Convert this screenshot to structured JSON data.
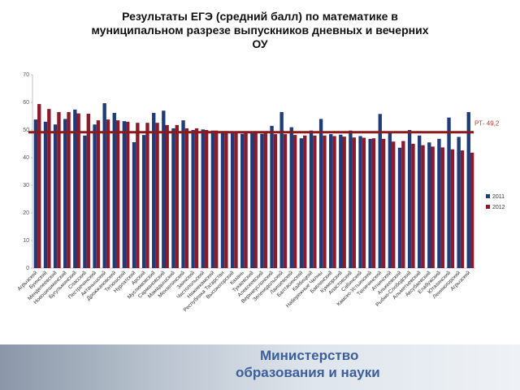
{
  "chart_data": {
    "type": "bar",
    "title": "Результаты ЕГЭ (средний балл) по математике в муниципальном разрезе выпускников дневных и вечерних ОУ",
    "categories": [
      "Агрызский",
      "Буинский",
      "Менделеевский",
      "Новошешминский",
      "Бугульминский",
      "Спасский",
      "Пестречинский",
      "Актанышский",
      "Дрожжановский",
      "Тетюшский",
      "Нурлатский",
      "Арский",
      "Муслюмовский",
      "Сармановский",
      "Мамадышский",
      "Мензелинский",
      "Заинский",
      "Чистопольский",
      "Нижнекамский",
      "Республика Татарстан",
      "Высокогорский",
      "Казань",
      "Тукаевский",
      "Алексеевский",
      "Верхнеуслонский",
      "Зеленодольский",
      "Лаишевский",
      "Балтасинский",
      "Кайбицкий",
      "Набережные Челны",
      "Бавлинский",
      "Кукморский",
      "Апастовский",
      "Сабинский",
      "Камско-Устьинский",
      "Тюлячинский",
      "Атнинский",
      "Алькеевский",
      "Рыбно-Слободский",
      "Альметьевский",
      "Аксубаевский",
      "Елабужский",
      "Ютазинский",
      "Лениногорский",
      "Агрызский"
    ],
    "series": [
      {
        "name": "2011",
        "color": "#1f3b7a",
        "values": [
          53.8,
          53,
          52,
          54,
          57.4,
          48,
          52,
          59.7,
          56.2,
          53.2,
          45.6,
          48.2,
          56.2,
          57,
          50.6,
          53.5,
          50,
          50.2,
          49.8,
          49.6,
          49.4,
          48.6,
          49,
          48.6,
          51.5,
          56.5,
          51,
          47,
          49.8,
          54,
          48.5,
          48.3,
          49.8,
          47.8,
          46.8,
          55.8,
          49,
          43.6,
          50,
          48,
          45.5,
          46.8,
          54.5,
          47.5,
          56.5
        ]
      },
      {
        "name": "2012",
        "color": "#8b1a2a",
        "values": [
          59.4,
          57.6,
          56.5,
          56.5,
          56,
          55.9,
          53.5,
          53.8,
          53.5,
          53,
          52.6,
          52.6,
          52.6,
          51.8,
          51.8,
          50.6,
          50.6,
          50,
          49.8,
          49.6,
          49.4,
          49.2,
          49,
          48.8,
          48.5,
          48.5,
          48.2,
          48,
          48,
          48,
          47.8,
          47.6,
          47.3,
          47.2,
          47,
          46.8,
          45.8,
          46,
          45,
          44.5,
          44,
          43.7,
          43,
          42.6,
          41.8
        ]
      }
    ],
    "ylim": [
      0,
      70
    ],
    "yticks": [
      0,
      10,
      20,
      30,
      40,
      50,
      60,
      70
    ],
    "reference": {
      "value": 49.2,
      "label": "РТ- 49,2",
      "color": "#8b1a1a"
    },
    "legend": "right"
  },
  "footer": {
    "line1": "Министерство",
    "line2": "образования и науки"
  }
}
